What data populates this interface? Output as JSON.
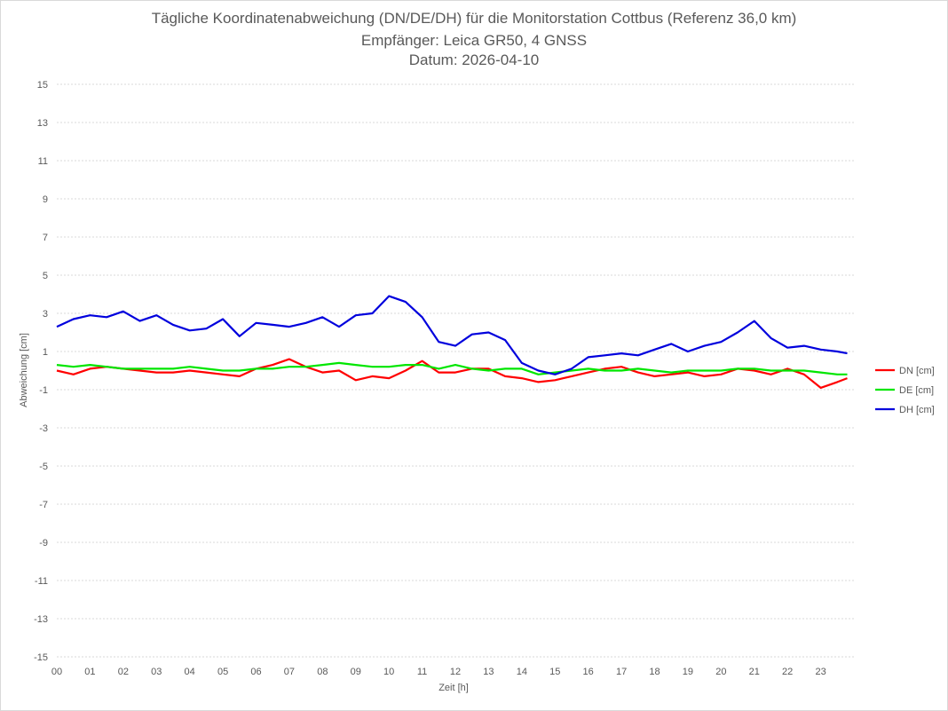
{
  "chart_data": {
    "type": "line",
    "title": "Tägliche Koordinatenabweichung (DN/DE/DH) für die Monitorstation Cottbus (Referenz 36,0 km)",
    "subtitle": "Empfänger: Leica GR50, 4 GNSS",
    "date_line": "Datum: 2026-04-10",
    "xlabel": "Zeit [h]",
    "ylabel": "Abweichung [cm]",
    "xlim": [
      0,
      24
    ],
    "ylim": [
      -15,
      15
    ],
    "x_ticks": [
      "00",
      "01",
      "02",
      "03",
      "04",
      "05",
      "06",
      "07",
      "08",
      "09",
      "10",
      "11",
      "12",
      "13",
      "14",
      "15",
      "16",
      "17",
      "18",
      "19",
      "20",
      "21",
      "22",
      "23"
    ],
    "y_ticks": [
      15,
      13,
      11,
      9,
      7,
      5,
      3,
      1,
      -1,
      -3,
      -5,
      -7,
      -9,
      -11,
      -13,
      -15
    ],
    "grid": true,
    "legend_position": "right",
    "x": [
      0,
      0.5,
      1,
      1.5,
      2,
      2.5,
      3,
      3.5,
      4,
      4.5,
      5,
      5.5,
      6,
      6.5,
      7,
      7.5,
      8,
      8.5,
      9,
      9.5,
      10,
      10.5,
      11,
      11.5,
      12,
      12.5,
      13,
      13.5,
      14,
      14.5,
      15,
      15.5,
      16,
      16.5,
      17,
      17.5,
      18,
      18.5,
      19,
      19.5,
      20,
      20.5,
      21,
      21.5,
      22,
      22.5,
      23,
      23.5,
      23.8
    ],
    "series": [
      {
        "name": "DN [cm]",
        "color": "#ff0000",
        "values": [
          0.0,
          -0.2,
          0.1,
          0.2,
          0.1,
          0.0,
          -0.1,
          -0.1,
          0.0,
          -0.1,
          -0.2,
          -0.3,
          0.1,
          0.3,
          0.6,
          0.2,
          -0.1,
          0.0,
          -0.5,
          -0.3,
          -0.4,
          0.0,
          0.5,
          -0.1,
          -0.1,
          0.1,
          0.1,
          -0.3,
          -0.4,
          -0.6,
          -0.5,
          -0.3,
          -0.1,
          0.1,
          0.2,
          -0.1,
          -0.3,
          -0.2,
          -0.1,
          -0.3,
          -0.2,
          0.1,
          0.0,
          -0.2,
          0.1,
          -0.2,
          -0.9,
          -0.6,
          -0.4
        ]
      },
      {
        "name": "DE [cm]",
        "color": "#00e600",
        "values": [
          0.3,
          0.2,
          0.3,
          0.2,
          0.1,
          0.1,
          0.1,
          0.1,
          0.2,
          0.1,
          0.0,
          0.0,
          0.1,
          0.1,
          0.2,
          0.2,
          0.3,
          0.4,
          0.3,
          0.2,
          0.2,
          0.3,
          0.3,
          0.1,
          0.3,
          0.1,
          0.0,
          0.1,
          0.1,
          -0.2,
          -0.1,
          0.0,
          0.1,
          0.0,
          0.0,
          0.1,
          0.0,
          -0.1,
          0.0,
          0.0,
          0.0,
          0.1,
          0.1,
          0.0,
          0.0,
          0.0,
          -0.1,
          -0.2,
          -0.2
        ]
      },
      {
        "name": "DH [cm]",
        "color": "#0000dd",
        "values": [
          2.3,
          2.7,
          2.9,
          2.8,
          3.1,
          2.6,
          2.9,
          2.4,
          2.1,
          2.2,
          2.7,
          1.8,
          2.5,
          2.4,
          2.3,
          2.5,
          2.8,
          2.3,
          2.9,
          3.0,
          3.9,
          3.6,
          2.8,
          1.5,
          1.3,
          1.9,
          2.0,
          1.6,
          0.4,
          0.0,
          -0.2,
          0.1,
          0.7,
          0.8,
          0.9,
          0.8,
          1.1,
          1.4,
          1.0,
          1.3,
          1.5,
          2.0,
          2.6,
          1.7,
          1.2,
          1.3,
          1.1,
          1.0,
          0.9
        ]
      }
    ]
  }
}
